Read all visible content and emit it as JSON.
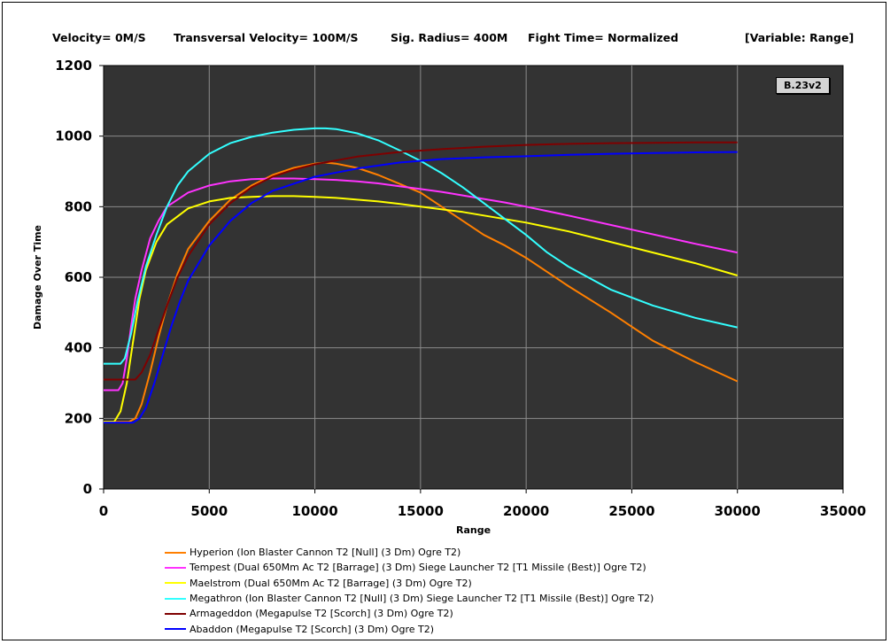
{
  "header": {
    "velocity": "Velocity= 0M/S",
    "transversal": "Transversal Velocity= 100M/S",
    "sig_radius": "Sig. Radius= 400M",
    "fight_time": "Fight Time= Normalized",
    "variable": "[Variable: Range]"
  },
  "badge": "B.23v2",
  "chart_data": {
    "type": "line",
    "xlabel": "Range",
    "ylabel": "Damage Over Time",
    "xlim": [
      0,
      35000
    ],
    "ylim": [
      0,
      1200
    ],
    "xticks": [
      0,
      5000,
      10000,
      15000,
      20000,
      25000,
      30000,
      35000
    ],
    "yticks": [
      0,
      200,
      400,
      600,
      800,
      1000,
      1200
    ],
    "grid": true,
    "legend_position": "bottom",
    "background": "#333333",
    "series": [
      {
        "name": "Hyperion (Ion Blaster Cannon T2 [Null] (3 Dm) Ogre T2)",
        "color": "#ff7f00",
        "points": [
          [
            0,
            190
          ],
          [
            1200,
            190
          ],
          [
            1500,
            200
          ],
          [
            1800,
            240
          ],
          [
            2200,
            330
          ],
          [
            2600,
            430
          ],
          [
            3000,
            520
          ],
          [
            3500,
            610
          ],
          [
            4000,
            680
          ],
          [
            5000,
            760
          ],
          [
            6000,
            820
          ],
          [
            7000,
            860
          ],
          [
            8000,
            890
          ],
          [
            9000,
            910
          ],
          [
            10000,
            922
          ],
          [
            10500,
            925
          ],
          [
            11000,
            922
          ],
          [
            12000,
            910
          ],
          [
            13000,
            890
          ],
          [
            14000,
            865
          ],
          [
            15000,
            840
          ],
          [
            16000,
            800
          ],
          [
            17000,
            760
          ],
          [
            18000,
            720
          ],
          [
            19000,
            690
          ],
          [
            20000,
            655
          ],
          [
            22000,
            575
          ],
          [
            24000,
            500
          ],
          [
            25000,
            460
          ],
          [
            26000,
            420
          ],
          [
            28000,
            360
          ],
          [
            30000,
            305
          ]
        ]
      },
      {
        "name": "Tempest (Dual 650Mm Ac T2 [Barrage] (3 Dm) Siege Launcher T2 [T1 Missile (Best)] Ogre T2)",
        "color": "#ff33ff",
        "points": [
          [
            0,
            280
          ],
          [
            700,
            280
          ],
          [
            900,
            300
          ],
          [
            1100,
            370
          ],
          [
            1300,
            460
          ],
          [
            1500,
            540
          ],
          [
            1800,
            620
          ],
          [
            2200,
            710
          ],
          [
            2600,
            760
          ],
          [
            3000,
            800
          ],
          [
            4000,
            840
          ],
          [
            5000,
            860
          ],
          [
            6000,
            872
          ],
          [
            7000,
            878
          ],
          [
            8000,
            880
          ],
          [
            9000,
            880
          ],
          [
            10000,
            878
          ],
          [
            11000,
            876
          ],
          [
            12000,
            872
          ],
          [
            13000,
            866
          ],
          [
            14000,
            858
          ],
          [
            15000,
            850
          ],
          [
            16000,
            842
          ],
          [
            17000,
            832
          ],
          [
            18000,
            822
          ],
          [
            19000,
            812
          ],
          [
            20000,
            800
          ],
          [
            22000,
            775
          ],
          [
            25000,
            735
          ],
          [
            28000,
            695
          ],
          [
            30000,
            670
          ]
        ]
      },
      {
        "name": "Maelstrom (Dual 650Mm Ac T2 [Barrage] (3 Dm) Ogre T2)",
        "color": "#ffff00",
        "points": [
          [
            0,
            190
          ],
          [
            500,
            190
          ],
          [
            800,
            220
          ],
          [
            1100,
            300
          ],
          [
            1400,
            420
          ],
          [
            1700,
            540
          ],
          [
            2000,
            620
          ],
          [
            2500,
            700
          ],
          [
            3000,
            750
          ],
          [
            4000,
            795
          ],
          [
            5000,
            815
          ],
          [
            6000,
            825
          ],
          [
            7000,
            828
          ],
          [
            8000,
            830
          ],
          [
            9000,
            830
          ],
          [
            10000,
            828
          ],
          [
            11000,
            825
          ],
          [
            12000,
            820
          ],
          [
            13000,
            815
          ],
          [
            14000,
            808
          ],
          [
            15000,
            800
          ],
          [
            17000,
            785
          ],
          [
            20000,
            755
          ],
          [
            22000,
            730
          ],
          [
            25000,
            685
          ],
          [
            28000,
            640
          ],
          [
            30000,
            605
          ]
        ]
      },
      {
        "name": "Megathron (Ion Blaster Cannon T2 [Null] (3 Dm) Siege Launcher T2 [T1 Missile (Best)] Ogre T2)",
        "color": "#33ffff",
        "points": [
          [
            0,
            355
          ],
          [
            800,
            355
          ],
          [
            1000,
            370
          ],
          [
            1300,
            440
          ],
          [
            1600,
            530
          ],
          [
            2000,
            630
          ],
          [
            2500,
            720
          ],
          [
            3000,
            800
          ],
          [
            3500,
            860
          ],
          [
            4000,
            900
          ],
          [
            5000,
            950
          ],
          [
            6000,
            980
          ],
          [
            7000,
            998
          ],
          [
            8000,
            1010
          ],
          [
            9000,
            1018
          ],
          [
            10000,
            1022
          ],
          [
            10500,
            1022
          ],
          [
            11000,
            1020
          ],
          [
            12000,
            1008
          ],
          [
            13000,
            988
          ],
          [
            14000,
            960
          ],
          [
            15000,
            930
          ],
          [
            16000,
            895
          ],
          [
            17000,
            855
          ],
          [
            18000,
            810
          ],
          [
            19000,
            765
          ],
          [
            20000,
            720
          ],
          [
            21000,
            670
          ],
          [
            22000,
            630
          ],
          [
            24000,
            565
          ],
          [
            26000,
            520
          ],
          [
            28000,
            485
          ],
          [
            30000,
            458
          ]
        ]
      },
      {
        "name": "Armageddon (Megapulse T2 [Scorch] (3 Dm) Ogre T2)",
        "color": "#7f0000",
        "points": [
          [
            0,
            310
          ],
          [
            1500,
            310
          ],
          [
            1800,
            330
          ],
          [
            2200,
            380
          ],
          [
            2600,
            450
          ],
          [
            3000,
            520
          ],
          [
            3500,
            600
          ],
          [
            4000,
            660
          ],
          [
            5000,
            750
          ],
          [
            6000,
            810
          ],
          [
            7000,
            855
          ],
          [
            8000,
            885
          ],
          [
            9000,
            905
          ],
          [
            10000,
            920
          ],
          [
            12000,
            942
          ],
          [
            14000,
            955
          ],
          [
            16000,
            963
          ],
          [
            18000,
            970
          ],
          [
            20000,
            975
          ],
          [
            22000,
            978
          ],
          [
            24000,
            980
          ],
          [
            26000,
            981
          ],
          [
            28000,
            982
          ],
          [
            30000,
            982
          ]
        ]
      },
      {
        "name": "Abaddon (Megapulse T2 [Scorch] (3 Dm) Ogre T2)",
        "color": "#0000ff",
        "points": [
          [
            0,
            188
          ],
          [
            1400,
            188
          ],
          [
            1700,
            200
          ],
          [
            2000,
            230
          ],
          [
            2400,
            300
          ],
          [
            2800,
            380
          ],
          [
            3200,
            460
          ],
          [
            3600,
            530
          ],
          [
            4000,
            590
          ],
          [
            5000,
            690
          ],
          [
            6000,
            760
          ],
          [
            7000,
            810
          ],
          [
            8000,
            845
          ],
          [
            9000,
            865
          ],
          [
            10000,
            885
          ],
          [
            12000,
            908
          ],
          [
            14000,
            925
          ],
          [
            16000,
            935
          ],
          [
            18000,
            940
          ],
          [
            20000,
            943
          ],
          [
            22000,
            947
          ],
          [
            24000,
            950
          ],
          [
            26000,
            952
          ],
          [
            28000,
            954
          ],
          [
            30000,
            955
          ]
        ]
      }
    ]
  }
}
